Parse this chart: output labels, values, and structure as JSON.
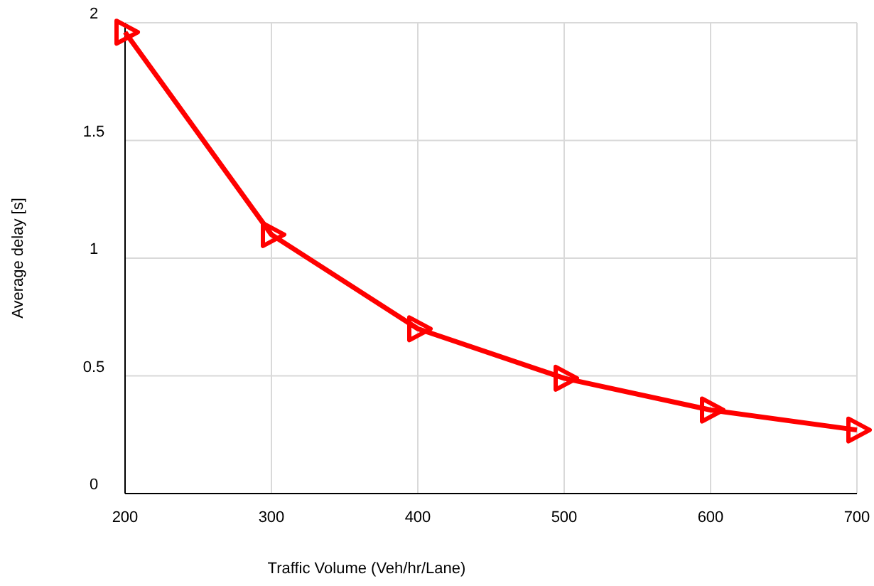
{
  "chart_data": {
    "type": "line",
    "xlabel": "Traffic Volume (Veh/hr/Lane)",
    "ylabel": "Average delay [s]",
    "x": [
      200,
      300,
      400,
      500,
      600,
      700
    ],
    "series": [
      {
        "color": "#ff0000",
        "values": [
          1.96,
          1.1,
          0.7,
          0.49,
          0.355,
          0.27
        ]
      }
    ],
    "xlim": [
      200,
      700
    ],
    "xticks": [
      200,
      300,
      400,
      500,
      600,
      700
    ],
    "ylim": [
      0,
      2
    ],
    "yticks": [
      0,
      {
        "value": 0.5,
        "label": "0.5"
      },
      1,
      {
        "value": 1.5,
        "label": "1.5"
      },
      2
    ],
    "grid": true,
    "marker": "triangle",
    "line_style": "solid"
  }
}
